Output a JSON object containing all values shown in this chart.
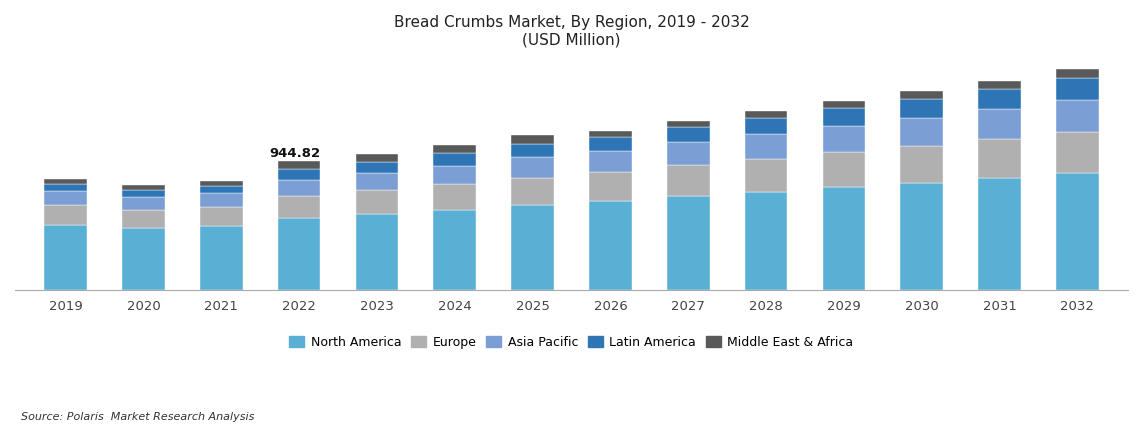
{
  "title_line1": "Bread Crumbs Market, By Region, 2019 - 2032",
  "title_line2": "(USD Million)",
  "years": [
    2019,
    2020,
    2021,
    2022,
    2023,
    2024,
    2025,
    2026,
    2027,
    2028,
    2029,
    2030,
    2031,
    2032
  ],
  "regions": [
    "North America",
    "Europe",
    "Asia Pacific",
    "Latin America",
    "Middle East & Africa"
  ],
  "colors": [
    "#5AAFD4",
    "#B0B0B0",
    "#7B9FD4",
    "#2E75B6",
    "#595959"
  ],
  "North America": [
    480,
    455,
    470,
    530,
    560,
    590,
    625,
    655,
    690,
    720,
    755,
    785,
    820,
    855
  ],
  "Europe": [
    145,
    135,
    140,
    160,
    170,
    185,
    200,
    210,
    225,
    240,
    255,
    270,
    288,
    305
  ],
  "Asia Pacific": [
    100,
    95,
    100,
    120,
    128,
    138,
    150,
    158,
    170,
    182,
    195,
    208,
    222,
    237
  ],
  "Latin America": [
    55,
    52,
    55,
    80,
    84,
    90,
    97,
    103,
    111,
    118,
    127,
    136,
    145,
    155
  ],
  "Middle East & Africa": [
    35,
    33,
    35,
    54.82,
    57,
    61,
    65,
    42,
    46,
    50,
    54,
    58,
    62,
    66
  ],
  "annotation_year_idx": 3,
  "annotation_text": "944.82",
  "source_text": "Source: Polaris  Market Research Analysis",
  "ylim_max": 1700,
  "bar_width": 0.55,
  "background_color": "#FFFFFF",
  "title_color": "#222222"
}
